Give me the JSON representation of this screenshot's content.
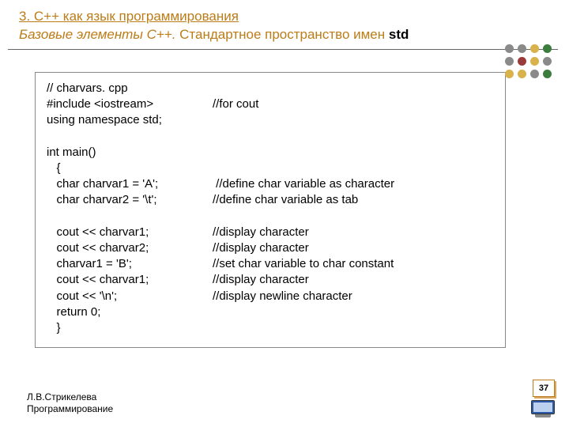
{
  "header": {
    "line1": "3. С++ как язык программирования",
    "line2_a": "Базовые элементы С++.",
    "line2_b": " Стандартное пространство имен ",
    "line2_c": "std"
  },
  "dots": {
    "colors": [
      "#8a8a8a",
      "#8a8a8a",
      "#d8b24a",
      "#3c7c3c",
      "#8a8a8a",
      "#9a3a3a",
      "#d8b24a",
      "#8a8a8a",
      "#d8b24a",
      "#d8b24a",
      "#8a8a8a",
      "#3c7c3c"
    ]
  },
  "code": {
    "b1": [
      {
        "l": "// charvars. cpp",
        "r": ""
      },
      {
        "l": "#include <iostream>",
        "r": "//for cout"
      },
      {
        "l": "using namespace std;",
        "r": ""
      }
    ],
    "b2": [
      {
        "l": "int main()",
        "r": ""
      },
      {
        "l": "   {",
        "r": ""
      },
      {
        "l": "   char charvar1 = 'A';",
        "r": " //define char variable as character"
      },
      {
        "l": "   char charvar2 = '\\t';",
        "r": "//define char variable as tab"
      }
    ],
    "b3": [
      {
        "l": "   cout << charvar1;",
        "r": "//display character"
      },
      {
        "l": "   cout << charvar2;",
        "r": "//display character"
      },
      {
        "l": "   charvar1 = 'B';",
        "r": "//set char variable to char constant"
      },
      {
        "l": "   cout << charvar1;",
        "r": "//display character"
      },
      {
        "l": "   cout << '\\n';",
        "r": "//display newline character"
      },
      {
        "l": "   return 0;",
        "r": ""
      },
      {
        "l": "   }",
        "r": ""
      }
    ]
  },
  "footer": {
    "author": "Л.В.Стрикелева",
    "course": "Программирование"
  },
  "page": "37"
}
